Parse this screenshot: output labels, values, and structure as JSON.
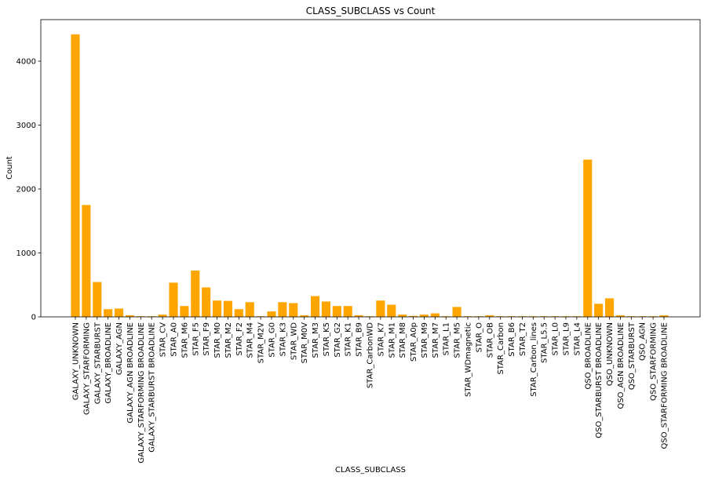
{
  "chart_data": {
    "type": "bar",
    "title": "CLASS_SUBCLASS vs Count",
    "xlabel": "CLASS_SUBCLASS",
    "ylabel": "Count",
    "ylim": [
      0,
      4650
    ],
    "yticks": [
      0,
      1000,
      2000,
      3000,
      4000
    ],
    "bar_color": "#ffa500",
    "grid": false,
    "categories": [
      "GALAXY_UNKNOWN",
      "GALAXY_STARFORMING",
      "GALAXY_STARBURST",
      "GALAXY_BROADLINE",
      "GALAXY_AGN",
      "GALAXY_AGN BROADLINE",
      "GALAXY_STARFORMING BROADLINE",
      "GALAXY_STARBURST BROADLINE",
      "STAR_CV",
      "STAR_A0",
      "STAR_M6",
      "STAR_F5",
      "STAR_F9",
      "STAR_M0",
      "STAR_M2",
      "STAR_F2",
      "STAR_M4",
      "STAR_M2V",
      "STAR_G0",
      "STAR_K3",
      "STAR_WD",
      "STAR_M0V",
      "STAR_M3",
      "STAR_K5",
      "STAR_G2",
      "STAR_K1",
      "STAR_B9",
      "STAR_CarbonWD",
      "STAR_K7",
      "STAR_M1",
      "STAR_M8",
      "STAR_A0p",
      "STAR_M9",
      "STAR_M7",
      "STAR_L1",
      "STAR_M5",
      "STAR_WDmagnetic",
      "STAR_O",
      "STAR_OB",
      "STAR_Carbon",
      "STAR_B6",
      "STAR_T2",
      "STAR_Carbon_lines",
      "STAR_L5.5",
      "STAR_L0",
      "STAR_L9",
      "STAR_L4",
      "QSO_BROADLINE",
      "QSO_STARBURST BROADLINE",
      "QSO_UNKNOWN",
      "QSO_AGN BROADLINE",
      "QSO_STARBURST",
      "QSO_AGN",
      "QSO_STARFORMING",
      "QSO_STARFORMING BROADLINE"
    ],
    "values": [
      4420,
      1750,
      545,
      120,
      130,
      25,
      10,
      10,
      35,
      535,
      170,
      725,
      460,
      255,
      250,
      120,
      230,
      10,
      85,
      230,
      215,
      25,
      325,
      240,
      170,
      170,
      25,
      10,
      255,
      190,
      35,
      15,
      35,
      55,
      10,
      155,
      10,
      10,
      25,
      10,
      10,
      10,
      10,
      10,
      10,
      10,
      10,
      2460,
      205,
      290,
      25,
      10,
      10,
      10,
      25
    ]
  }
}
